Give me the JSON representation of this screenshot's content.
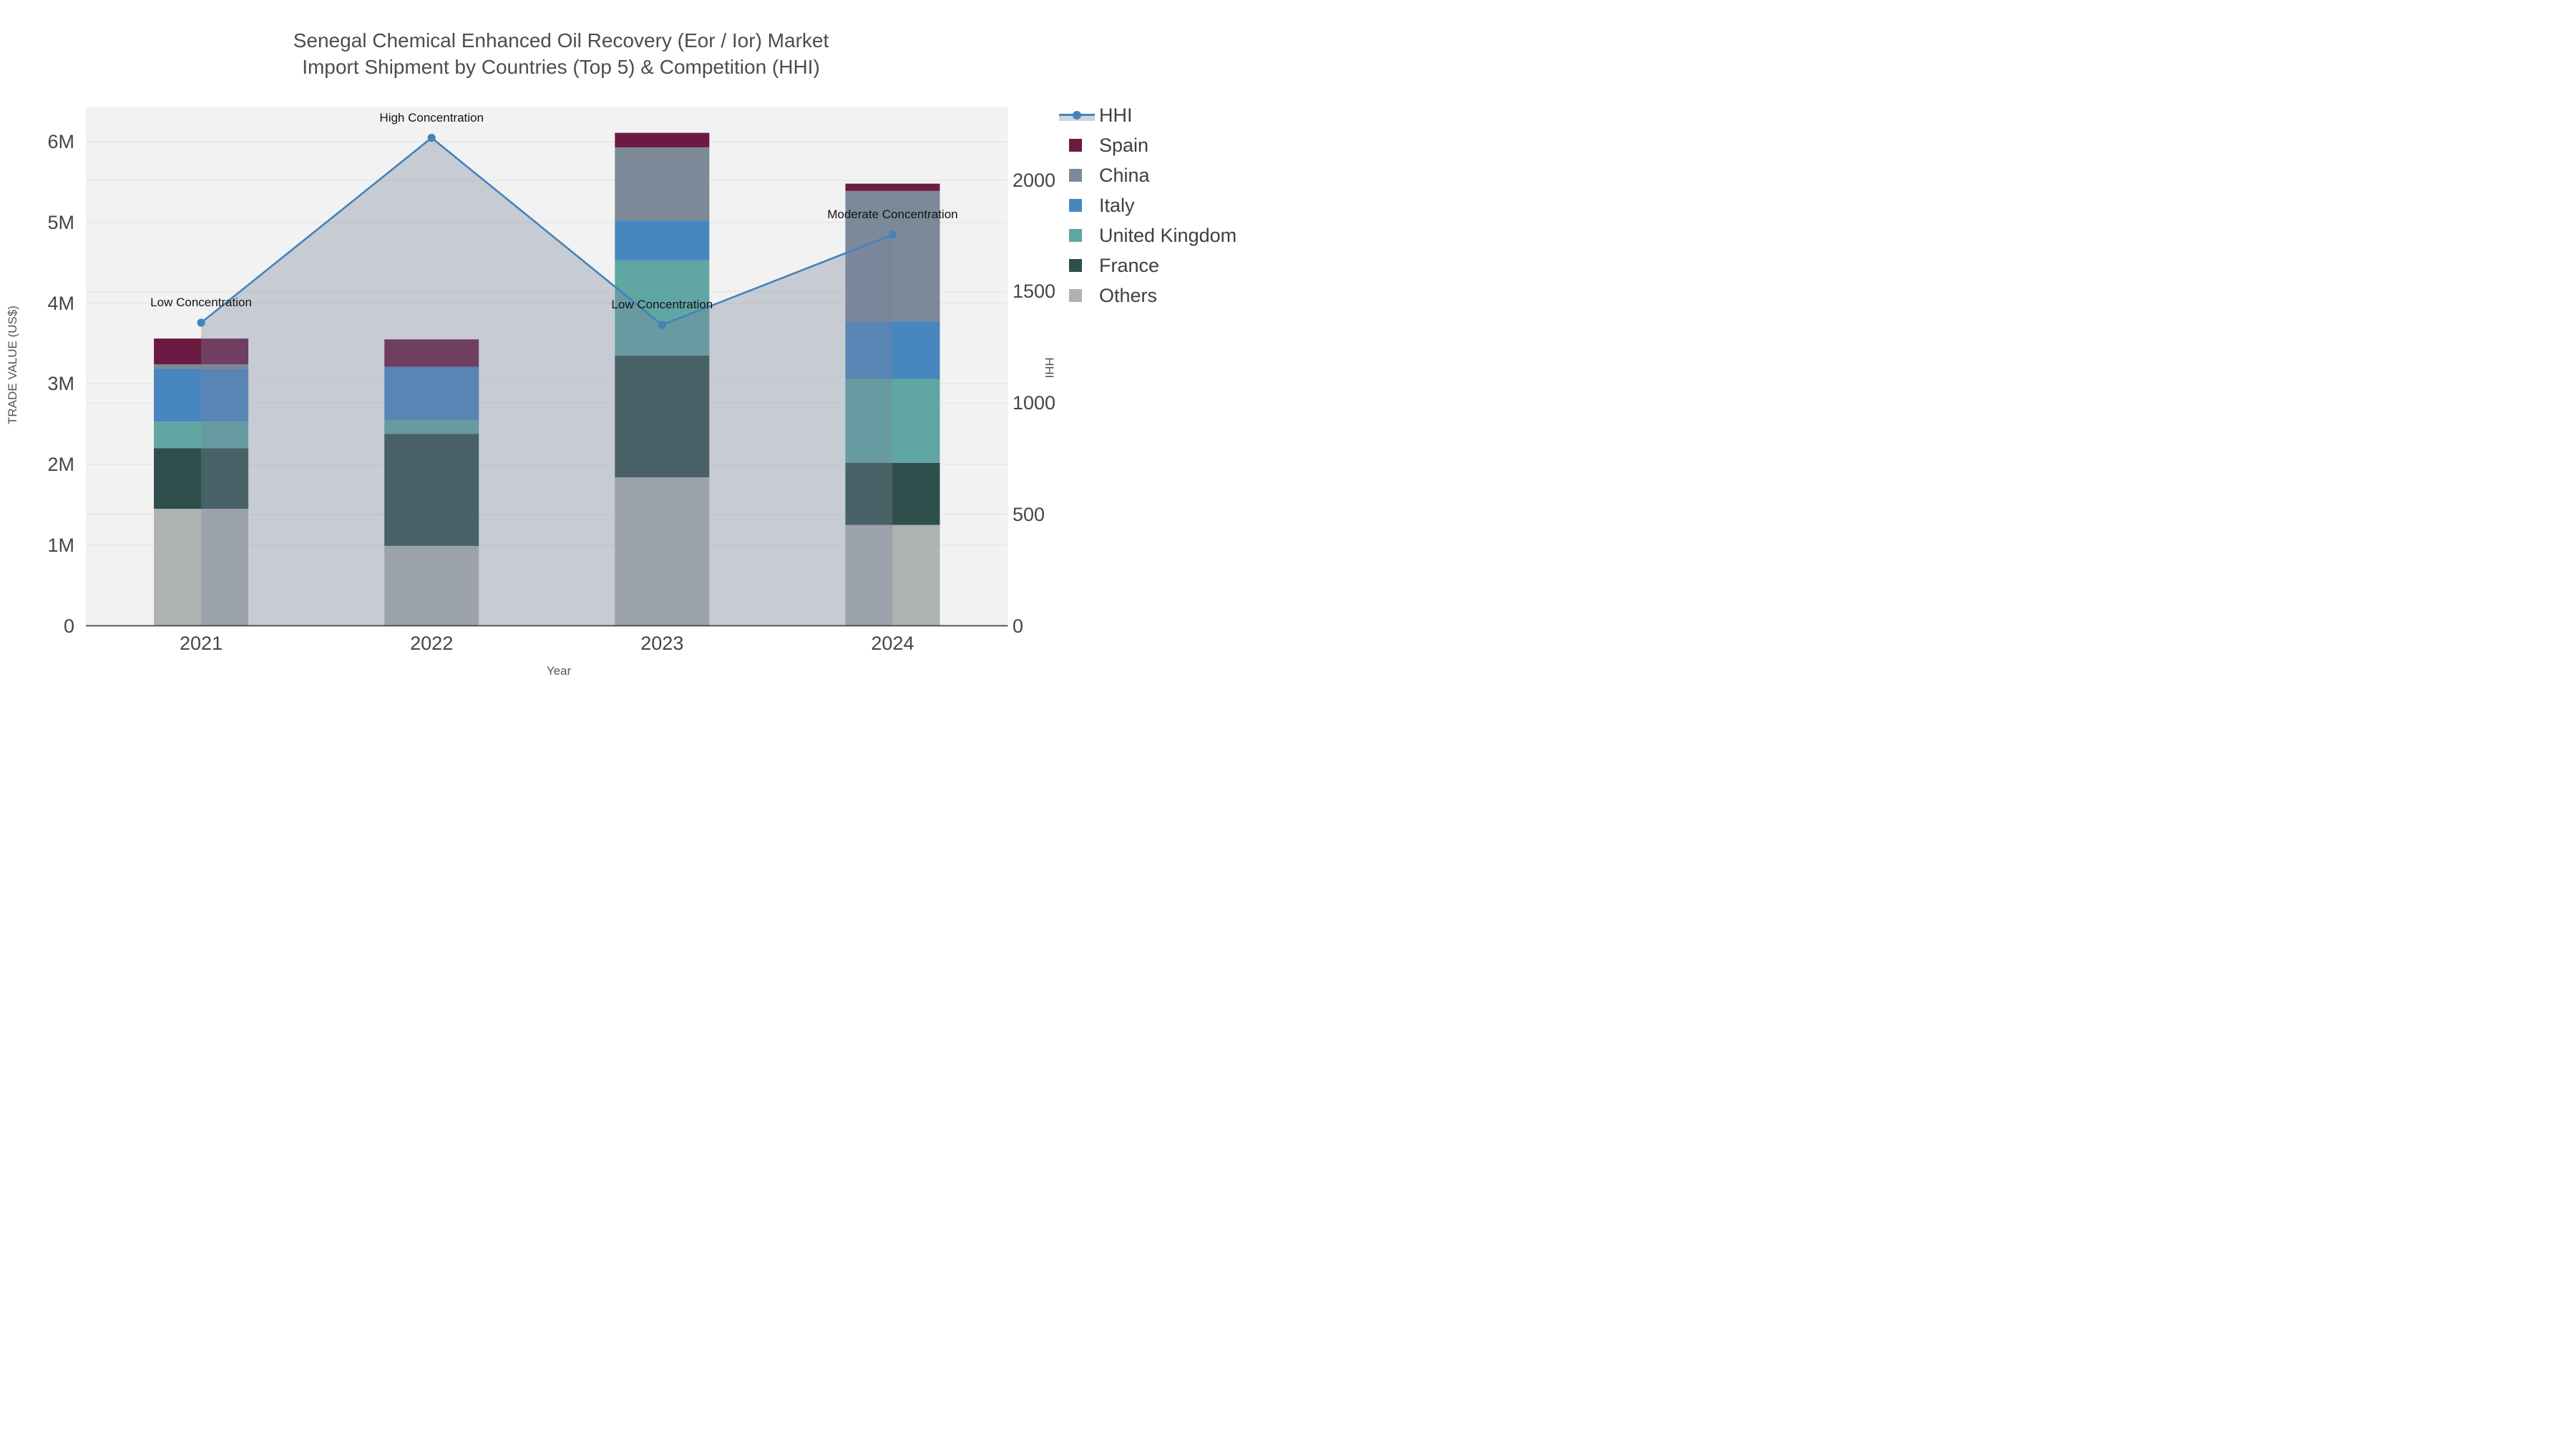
{
  "title": {
    "line1": "Senegal Chemical Enhanced Oil Recovery (Eor / Ior) Market",
    "line2": "Import Shipment by Countries (Top 5) & Competition (HHI)"
  },
  "chart_data": {
    "type": "bar+line",
    "categories": [
      "2021",
      "2022",
      "2023",
      "2024"
    ],
    "stack_order_bottom_to_top": [
      "Others",
      "France",
      "United Kingdom",
      "Italy",
      "China",
      "Spain"
    ],
    "series": [
      {
        "name": "Spain",
        "color": "#6b1b41",
        "values": [
          320000,
          340000,
          180000,
          90000
        ]
      },
      {
        "name": "China",
        "color": "#7b8999",
        "values": [
          60000,
          0,
          910000,
          1620000
        ]
      },
      {
        "name": "Italy",
        "color": "#4886bf",
        "values": [
          650000,
          660000,
          490000,
          710000
        ]
      },
      {
        "name": "United Kingdom",
        "color": "#60a6a3",
        "values": [
          330000,
          170000,
          1180000,
          1040000
        ]
      },
      {
        "name": "France",
        "color": "#2e4f4b",
        "values": [
          750000,
          1390000,
          1510000,
          770000
        ]
      },
      {
        "name": "Others",
        "color": "#afb2b2",
        "values": [
          1450000,
          990000,
          1840000,
          1250000
        ]
      }
    ],
    "bar_totals": [
      3560000,
      3550000,
      6110000,
      5480000
    ],
    "hhi_line": {
      "name": "HHI",
      "color": "#4383bc",
      "fill_color": "rgba(119,133,159,0.35)",
      "values": [
        1360,
        2190,
        1350,
        1755
      ]
    },
    "annotations": [
      "Low Concentration",
      "High Concentration",
      "Low Concentration",
      "Moderate Concentration"
    ],
    "y_left": {
      "title": "TRADE VALUE (US$)",
      "ticks": [
        0,
        1000000,
        2000000,
        3000000,
        4000000,
        5000000,
        6000000
      ],
      "tick_labels": [
        "0",
        "1M",
        "2M",
        "3M",
        "4M",
        "5M",
        "6M"
      ],
      "axis_max": 6435000
    },
    "y_right": {
      "title": "HHI",
      "ticks": [
        0,
        500,
        1000,
        1500,
        2000
      ],
      "tick_labels": [
        "0",
        "500",
        "1000",
        "1500",
        "2000"
      ],
      "axis_max": 2330
    },
    "x": {
      "title": "Year"
    },
    "layout": {
      "plot_bg": "#f2f2f2",
      "grid_color": "#e5e5e5",
      "axis_line_color": "#444444",
      "legend_position": "right",
      "grid_on": true
    }
  },
  "legend": {
    "items": [
      {
        "label": "HHI",
        "type": "line"
      },
      {
        "label": "Spain",
        "type": "swatch",
        "color": "#6b1b41"
      },
      {
        "label": "China",
        "type": "swatch",
        "color": "#7b8999"
      },
      {
        "label": "Italy",
        "type": "swatch",
        "color": "#4886bf"
      },
      {
        "label": "United Kingdom",
        "type": "swatch",
        "color": "#60a6a3"
      },
      {
        "label": "France",
        "type": "swatch",
        "color": "#2e4f4b"
      },
      {
        "label": "Others",
        "type": "swatch",
        "color": "#afb2b2"
      }
    ]
  }
}
